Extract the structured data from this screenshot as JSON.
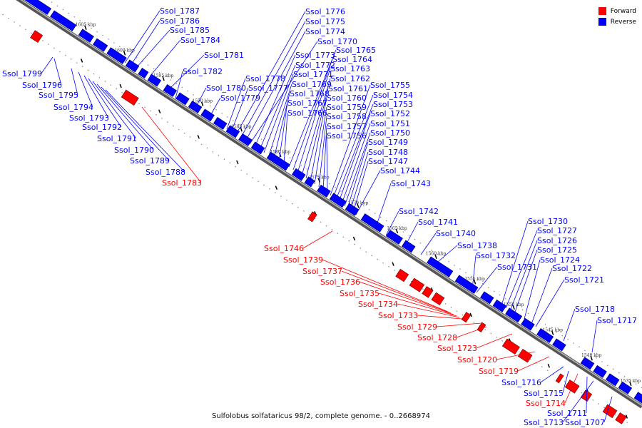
{
  "legend": {
    "forward": {
      "label": "Forward",
      "color": "#ff0000"
    },
    "reverse": {
      "label": "Reverse",
      "color": "#0000ff"
    }
  },
  "caption": "Sulfolobus solfataricus 98/2, complete genome. - 0..2668974",
  "scale_markers": [
    "1605 kbp",
    "1600 kbp",
    "1595 kbp",
    "1590 kbp",
    "1585 kbp",
    "1580 kbp",
    "1575 kbp",
    "1570 kbp",
    "1565 kbp",
    "1560 kbp",
    "1555 kbp",
    "1550 kbp",
    "1545 kbp",
    "1540 kbp",
    "1535 kbp"
  ],
  "genes": [
    {
      "name": "Ssol_1787",
      "strand": "reverse"
    },
    {
      "name": "Ssol_1786",
      "strand": "reverse"
    },
    {
      "name": "Ssol_1785",
      "strand": "reverse"
    },
    {
      "name": "Ssol_1784",
      "strand": "reverse"
    },
    {
      "name": "Ssol_1781",
      "strand": "reverse"
    },
    {
      "name": "Ssol_1782",
      "strand": "reverse"
    },
    {
      "name": "Ssol_1780",
      "strand": "reverse"
    },
    {
      "name": "Ssol_1779",
      "strand": "reverse"
    },
    {
      "name": "Ssol_1778",
      "strand": "reverse"
    },
    {
      "name": "Ssol_1777",
      "strand": "reverse"
    },
    {
      "name": "Ssol_1776",
      "strand": "reverse"
    },
    {
      "name": "Ssol_1775",
      "strand": "reverse"
    },
    {
      "name": "Ssol_1774",
      "strand": "reverse"
    },
    {
      "name": "Ssol_1770",
      "strand": "reverse"
    },
    {
      "name": "Ssol_1773",
      "strand": "reverse"
    },
    {
      "name": "Ssol_1772",
      "strand": "reverse"
    },
    {
      "name": "Ssol_1771",
      "strand": "reverse"
    },
    {
      "name": "Ssol_1769",
      "strand": "reverse"
    },
    {
      "name": "Ssol_1768",
      "strand": "reverse"
    },
    {
      "name": "Ssol_1767",
      "strand": "reverse"
    },
    {
      "name": "Ssol_1766",
      "strand": "reverse"
    },
    {
      "name": "Ssol_1765",
      "strand": "reverse"
    },
    {
      "name": "Ssol_1764",
      "strand": "reverse"
    },
    {
      "name": "Ssol_1763",
      "strand": "reverse"
    },
    {
      "name": "Ssol_1762",
      "strand": "reverse"
    },
    {
      "name": "Ssol_1761",
      "strand": "reverse"
    },
    {
      "name": "Ssol_1760",
      "strand": "reverse"
    },
    {
      "name": "Ssol_1759",
      "strand": "reverse"
    },
    {
      "name": "Ssol_1758",
      "strand": "reverse"
    },
    {
      "name": "Ssol_1757",
      "strand": "reverse"
    },
    {
      "name": "Ssol_1756",
      "strand": "reverse"
    },
    {
      "name": "Ssol_1755",
      "strand": "reverse"
    },
    {
      "name": "Ssol_1754",
      "strand": "reverse"
    },
    {
      "name": "Ssol_1753",
      "strand": "reverse"
    },
    {
      "name": "Ssol_1752",
      "strand": "reverse"
    },
    {
      "name": "Ssol_1751",
      "strand": "reverse"
    },
    {
      "name": "Ssol_1750",
      "strand": "reverse"
    },
    {
      "name": "Ssol_1749",
      "strand": "reverse"
    },
    {
      "name": "Ssol_1748",
      "strand": "reverse"
    },
    {
      "name": "Ssol_1747",
      "strand": "reverse"
    },
    {
      "name": "Ssol_1744",
      "strand": "reverse"
    },
    {
      "name": "Ssol_1743",
      "strand": "reverse"
    },
    {
      "name": "Ssol_1742",
      "strand": "reverse"
    },
    {
      "name": "Ssol_1741",
      "strand": "reverse"
    },
    {
      "name": "Ssol_1740",
      "strand": "reverse"
    },
    {
      "name": "Ssol_1738",
      "strand": "reverse"
    },
    {
      "name": "Ssol_1732",
      "strand": "reverse"
    },
    {
      "name": "Ssol_1731",
      "strand": "reverse"
    },
    {
      "name": "Ssol_1730",
      "strand": "reverse"
    },
    {
      "name": "Ssol_1727",
      "strand": "reverse"
    },
    {
      "name": "Ssol_1726",
      "strand": "reverse"
    },
    {
      "name": "Ssol_1725",
      "strand": "reverse"
    },
    {
      "name": "Ssol_1724",
      "strand": "reverse"
    },
    {
      "name": "Ssol_1722",
      "strand": "reverse"
    },
    {
      "name": "Ssol_1721",
      "strand": "reverse"
    },
    {
      "name": "Ssol_1718",
      "strand": "reverse"
    },
    {
      "name": "Ssol_1717",
      "strand": "reverse"
    },
    {
      "name": "Ssol_1799",
      "strand": "reverse"
    },
    {
      "name": "Ssol_1796",
      "strand": "reverse"
    },
    {
      "name": "Ssol_1795",
      "strand": "reverse"
    },
    {
      "name": "Ssol_1794",
      "strand": "reverse"
    },
    {
      "name": "Ssol_1793",
      "strand": "reverse"
    },
    {
      "name": "Ssol_1792",
      "strand": "reverse"
    },
    {
      "name": "Ssol_1791",
      "strand": "reverse"
    },
    {
      "name": "Ssol_1790",
      "strand": "reverse"
    },
    {
      "name": "Ssol_1789",
      "strand": "reverse"
    },
    {
      "name": "Ssol_1788",
      "strand": "reverse"
    },
    {
      "name": "Ssol_1716",
      "strand": "reverse"
    },
    {
      "name": "Ssol_1715",
      "strand": "reverse"
    },
    {
      "name": "Ssol_1711",
      "strand": "reverse"
    },
    {
      "name": "Ssol_1713",
      "strand": "reverse"
    },
    {
      "name": "Ssol_1707",
      "strand": "reverse"
    },
    {
      "name": "Ssol_1783",
      "strand": "forward"
    },
    {
      "name": "Ssol_1746",
      "strand": "forward"
    },
    {
      "name": "Ssol_1739",
      "strand": "forward"
    },
    {
      "name": "Ssol_1737",
      "strand": "forward"
    },
    {
      "name": "Ssol_1736",
      "strand": "forward"
    },
    {
      "name": "Ssol_1735",
      "strand": "forward"
    },
    {
      "name": "Ssol_1734",
      "strand": "forward"
    },
    {
      "name": "Ssol_1733",
      "strand": "forward"
    },
    {
      "name": "Ssol_1729",
      "strand": "forward"
    },
    {
      "name": "Ssol_1728",
      "strand": "forward"
    },
    {
      "name": "Ssol_1723",
      "strand": "forward"
    },
    {
      "name": "Ssol_1720",
      "strand": "forward"
    },
    {
      "name": "Ssol_1719",
      "strand": "forward"
    },
    {
      "name": "Ssol_1714",
      "strand": "forward"
    }
  ]
}
